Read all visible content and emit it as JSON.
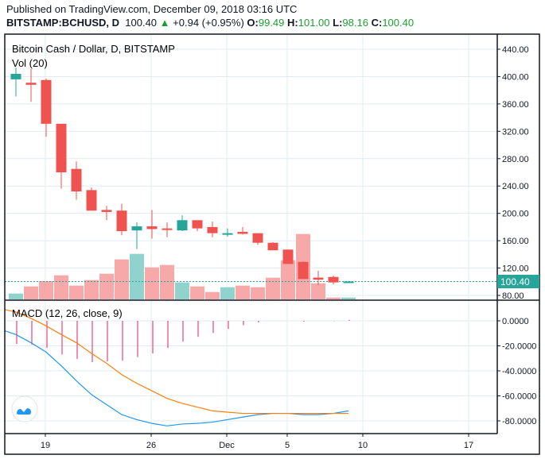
{
  "header": {
    "published": "Published on TradingView.com, December 09, 2018 03:16 UTC",
    "symbol": "BITSTAMP:BCHUSD, D",
    "last": "100.40",
    "change": "+0.94 (+0.95%)",
    "o_label": "O:",
    "o": "99.49",
    "h_label": "H:",
    "h": "101.00",
    "l_label": "L:",
    "l": "98.16",
    "c_label": "C:",
    "c": "100.40"
  },
  "legend": {
    "title": "Bitcoin Cash / Dollar, D, BITSTAMP",
    "volume": "Vol (20)",
    "macd": "MACD (12, 26, close, 9)"
  },
  "colors": {
    "up": "#26a69a",
    "down": "#ef5350",
    "vol_up": "#8fd3cc",
    "vol_down": "#f6a9a8",
    "macd": "#2196f3",
    "signal": "#ff7f0e",
    "histogram": "#e91e63",
    "grid": "#e1ecf2"
  },
  "chart_data": [
    {
      "type": "candlestick",
      "title": "Bitcoin Cash / Dollar, D, BITSTAMP",
      "x": [
        "Nov 17",
        "Nov 18",
        "Nov 19",
        "Nov 20",
        "Nov 21",
        "Nov 22",
        "Nov 23",
        "Nov 24",
        "Nov 25",
        "Nov 26",
        "Nov 27",
        "Nov 28",
        "Nov 29",
        "Nov 30",
        "Dec 1",
        "Dec 2",
        "Dec 3",
        "Dec 4",
        "Dec 5",
        "Dec 6",
        "Dec 7",
        "Dec 8",
        "Dec 9"
      ],
      "open": [
        396,
        391,
        395,
        331,
        265,
        234,
        205,
        204,
        175,
        181,
        178,
        175,
        190,
        180,
        169,
        173,
        171,
        157,
        147,
        129,
        106,
        107,
        99.49
      ],
      "high": [
        413,
        411,
        397,
        331,
        276,
        238,
        211,
        214,
        187,
        205,
        187,
        197,
        189,
        188,
        178,
        180,
        171,
        158,
        147,
        130,
        116,
        109,
        101.0
      ],
      "low": [
        371,
        363,
        312,
        236,
        220,
        204,
        190,
        168,
        148,
        163,
        165,
        174,
        174,
        165,
        166,
        169,
        154,
        146,
        126,
        104,
        95,
        96,
        98.16
      ],
      "close": [
        404,
        388,
        331,
        260,
        232,
        204,
        202,
        174,
        181,
        177,
        177,
        190,
        178,
        171,
        171,
        170,
        157,
        146,
        126,
        104,
        103,
        99,
        100.4
      ],
      "y_ticks": [
        "440.00",
        "400.00",
        "360.00",
        "320.00",
        "280.00",
        "240.00",
        "200.00",
        "160.00",
        "120.00",
        "80.00"
      ],
      "ylim": [
        80,
        440
      ],
      "last_price_label": "100.40",
      "x_tick_labels": [
        "19",
        "26",
        "Dec",
        "5",
        "10",
        "17"
      ],
      "grid": true
    },
    {
      "type": "bar",
      "title": "Vol (20)",
      "x": [
        "Nov 17",
        "Nov 18",
        "Nov 19",
        "Nov 20",
        "Nov 21",
        "Nov 22",
        "Nov 23",
        "Nov 24",
        "Nov 25",
        "Nov 26",
        "Nov 27",
        "Nov 28",
        "Nov 29",
        "Nov 30",
        "Dec 1",
        "Dec 2",
        "Dec 3",
        "Dec 4",
        "Dec 5",
        "Dec 6",
        "Dec 7",
        "Dec 8",
        "Dec 9"
      ],
      "volume_relative": [
        22,
        49,
        69,
        91,
        52,
        73,
        97,
        151,
        172,
        121,
        130,
        64,
        49,
        28,
        46,
        52,
        46,
        82,
        148,
        247,
        61,
        7,
        7
      ],
      "direction": [
        "up",
        "down",
        "down",
        "down",
        "down",
        "down",
        "down",
        "down",
        "up",
        "down",
        "down",
        "up",
        "down",
        "down",
        "up",
        "down",
        "down",
        "down",
        "down",
        "down",
        "down",
        "down",
        "up"
      ]
    },
    {
      "type": "line",
      "title": "MACD (12, 26, close, 9)",
      "x": [
        "Nov 17",
        "Nov 18",
        "Nov 19",
        "Nov 20",
        "Nov 21",
        "Nov 22",
        "Nov 23",
        "Nov 24",
        "Nov 25",
        "Nov 26",
        "Nov 27",
        "Nov 28",
        "Nov 29",
        "Nov 30",
        "Dec 1",
        "Dec 2",
        "Dec 3",
        "Dec 4",
        "Dec 5",
        "Dec 6",
        "Dec 7",
        "Dec 8",
        "Dec 9"
      ],
      "series": [
        {
          "key": "macd",
          "values": [
            -11,
            -17.5,
            -25,
            -36,
            -48,
            -59,
            -67,
            -75,
            -79,
            -82,
            -84,
            -82.5,
            -82,
            -81,
            -79,
            -77,
            -75,
            -74,
            -74,
            -75,
            -75,
            -74,
            -72
          ]
        },
        {
          "key": "signal",
          "values": [
            7,
            2,
            -4,
            -11,
            -17.5,
            -26,
            -34,
            -43,
            -50,
            -56,
            -62,
            -66,
            -69,
            -72,
            -73,
            -74,
            -74,
            -74,
            -74,
            -74,
            -74,
            -74,
            -74
          ]
        },
        {
          "key": "histogram",
          "values": [
            -18.5,
            -19,
            -21.7,
            -27,
            -30.5,
            -33,
            -32.4,
            -31.8,
            -29,
            -26,
            -21.7,
            -16.6,
            -12.8,
            -9.7,
            -6.5,
            -3.4,
            -1.3,
            0,
            0,
            -0.6,
            0,
            -0.2,
            0.8
          ]
        }
      ],
      "y_ticks": [
        "0.0000",
        "-20.0000",
        "-40.0000",
        "-60.0000",
        "-80.0000"
      ],
      "ylim": [
        -88,
        10
      ]
    }
  ]
}
